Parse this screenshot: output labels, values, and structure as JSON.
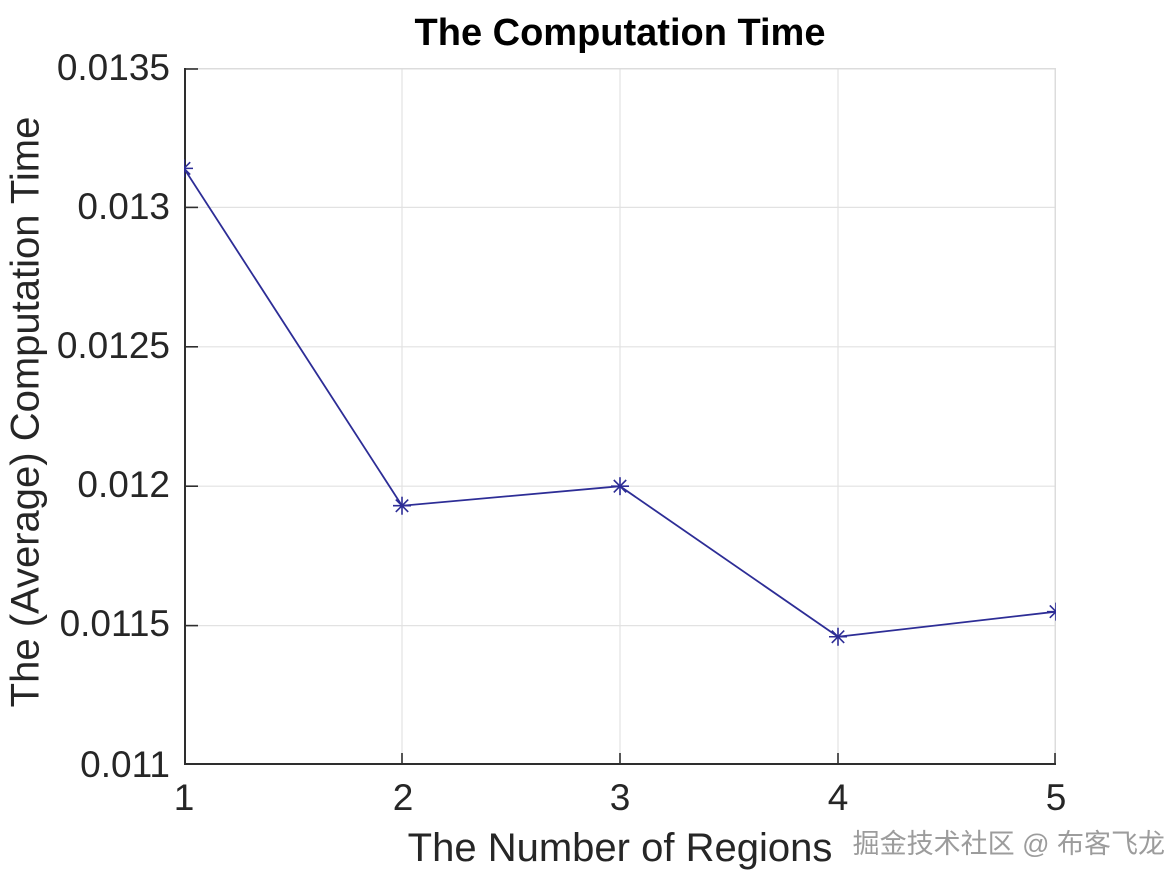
{
  "chart_data": {
    "type": "line",
    "title": "The Computation Time",
    "xlabel": "The Number of Regions",
    "ylabel": "The (Average) Computation Time",
    "x": [
      1,
      2,
      3,
      4,
      5
    ],
    "y": [
      0.01314,
      0.01193,
      0.012,
      0.01146,
      0.01155
    ],
    "xlim": [
      1,
      5
    ],
    "ylim": [
      0.011,
      0.0135
    ],
    "xticks": [
      1,
      2,
      3,
      4,
      5
    ],
    "xtick_labels": [
      "1",
      "2",
      "3",
      "4",
      "5"
    ],
    "yticks": [
      0.0135,
      0.013,
      0.0125,
      0.012,
      0.0115,
      0.011
    ],
    "ytick_labels": [
      "0.0135",
      "0.013",
      "0.0125",
      "0.012",
      "0.0115",
      "0.011"
    ],
    "grid": true,
    "legend": "none",
    "marker": "asterisk",
    "colors": {
      "line": "#2d2d96",
      "grid": "#e2e2e2",
      "axis_dark": "#2e2e2e",
      "box_light": "#dcdcdc",
      "text": "#262626",
      "title_text": "#000000",
      "watermark_text": "#9c9c9c"
    }
  },
  "watermark": {
    "text": "掘金技术社区 @ 布客飞龙"
  }
}
